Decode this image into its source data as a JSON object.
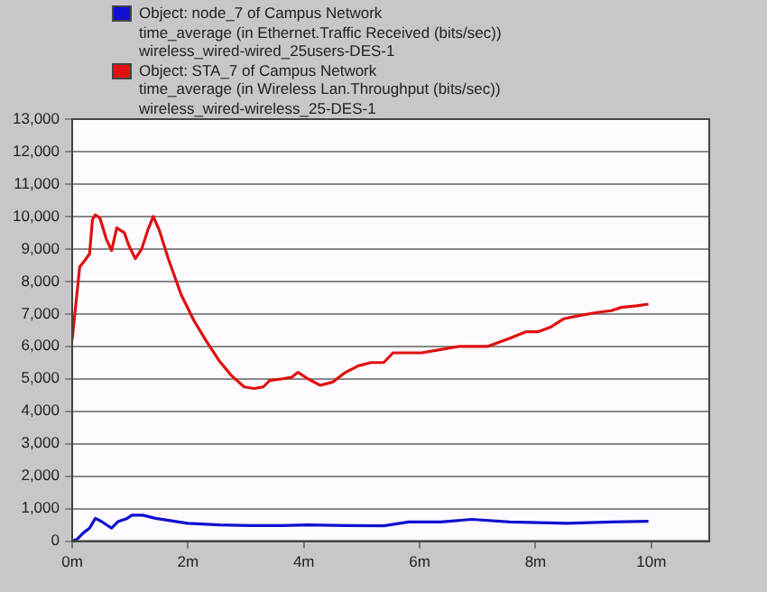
{
  "chart_data": {
    "type": "line",
    "legend": "top",
    "grid": "y",
    "marker": "none",
    "line_style": "solid",
    "xlim": [
      0,
      11
    ],
    "xticks": [
      {
        "value": 0,
        "label": "0m"
      },
      {
        "value": 2,
        "label": "2m"
      },
      {
        "value": 4,
        "label": "4m"
      },
      {
        "value": 6,
        "label": "6m"
      },
      {
        "value": 8,
        "label": "8m"
      },
      {
        "value": 10,
        "label": "10m"
      }
    ],
    "ylim": [
      0,
      13000
    ],
    "yticks": [
      {
        "value": 0,
        "label": "0"
      },
      {
        "value": 1000,
        "label": "1,000"
      },
      {
        "value": 2000,
        "label": "2,000"
      },
      {
        "value": 3000,
        "label": "3,000"
      },
      {
        "value": 4000,
        "label": "4,000"
      },
      {
        "value": 5000,
        "label": "5,000"
      },
      {
        "value": 6000,
        "label": "6,000"
      },
      {
        "value": 7000,
        "label": "7,000"
      },
      {
        "value": 8000,
        "label": "8,000"
      },
      {
        "value": 9000,
        "label": "9,000"
      },
      {
        "value": 10000,
        "label": "10,000"
      },
      {
        "value": 11000,
        "label": "11,000"
      },
      {
        "value": 12000,
        "label": "12,000"
      },
      {
        "value": 13000,
        "label": "13,000"
      }
    ],
    "series": [
      {
        "name": "Object: node_7 of Campus Network\ntime_average (in Ethernet.Traffic Received (bits/sec))\nwireless_wired-wired_25users-DES-1",
        "color": "#1010d0",
        "x": [
          0,
          0.08,
          0.19,
          0.3,
          0.4,
          0.51,
          0.68,
          0.79,
          0.95,
          1.03,
          1.22,
          1.44,
          1.99,
          2.54,
          3.08,
          3.63,
          4.07,
          4.72,
          5.38,
          5.81,
          6.36,
          6.9,
          7.56,
          8.55,
          9.31,
          9.95
        ],
        "values": [
          0,
          50,
          250,
          400,
          700,
          600,
          400,
          600,
          700,
          800,
          800,
          700,
          550,
          500,
          480,
          480,
          500,
          480,
          470,
          590,
          590,
          670,
          590,
          550,
          590,
          610
        ]
      },
      {
        "name": "Object: STA_7 of Campus Network\ntime_average (in Wireless Lan.Throughput (bits/sec))\nwireless_wired-wireless_25-DES-1",
        "color": "#e01010",
        "x": [
          0,
          0.13,
          0.22,
          0.3,
          0.35,
          0.4,
          0.48,
          0.59,
          0.68,
          0.77,
          0.9,
          0.98,
          1.09,
          1.2,
          1.31,
          1.4,
          1.5,
          1.66,
          1.88,
          2.1,
          2.32,
          2.54,
          2.75,
          2.97,
          3.14,
          3.3,
          3.41,
          3.63,
          3.79,
          3.9,
          4.07,
          4.28,
          4.5,
          4.72,
          4.94,
          5.16,
          5.38,
          5.54,
          5.7,
          6.03,
          6.36,
          6.69,
          7.18,
          7.56,
          7.84,
          8.05,
          8.27,
          8.49,
          8.76,
          9.09,
          9.31,
          9.48,
          9.75,
          9.95
        ],
        "values": [
          6200,
          8450,
          8650,
          8850,
          9900,
          10050,
          9950,
          9300,
          8950,
          9650,
          9500,
          9100,
          8700,
          9000,
          9600,
          10000,
          9600,
          8700,
          7600,
          6800,
          6150,
          5550,
          5100,
          4750,
          4700,
          4750,
          4950,
          5000,
          5050,
          5200,
          5000,
          4800,
          4900,
          5200,
          5400,
          5500,
          5500,
          5800,
          5800,
          5800,
          5900,
          6000,
          6000,
          6250,
          6450,
          6450,
          6600,
          6850,
          6950,
          7050,
          7100,
          7200,
          7250,
          7300
        ]
      }
    ]
  }
}
